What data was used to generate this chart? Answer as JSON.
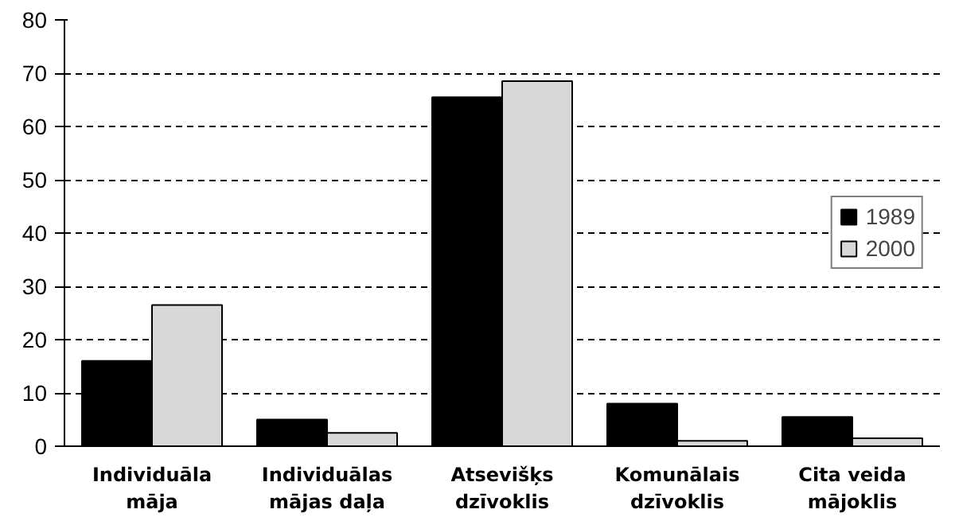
{
  "chart_data": {
    "type": "bar",
    "categories": [
      "Individuāla\nmāja",
      "Individuālas\nmājas daļa",
      "Atsevišķs\ndzīvoklis",
      "Komunālais\ndzīvoklis",
      "Cita veida\nmājoklis"
    ],
    "series": [
      {
        "name": "1989",
        "color": "#000000",
        "values": [
          16,
          5,
          65.5,
          8,
          5.5
        ]
      },
      {
        "name": "2000",
        "color": "#d8d8d8",
        "values": [
          26.5,
          2.5,
          68.5,
          1,
          1.5
        ]
      }
    ],
    "ylim": [
      0,
      80
    ],
    "yticks": [
      0,
      10,
      20,
      30,
      40,
      50,
      60,
      70,
      80
    ],
    "grid": "y",
    "legend": "right"
  }
}
